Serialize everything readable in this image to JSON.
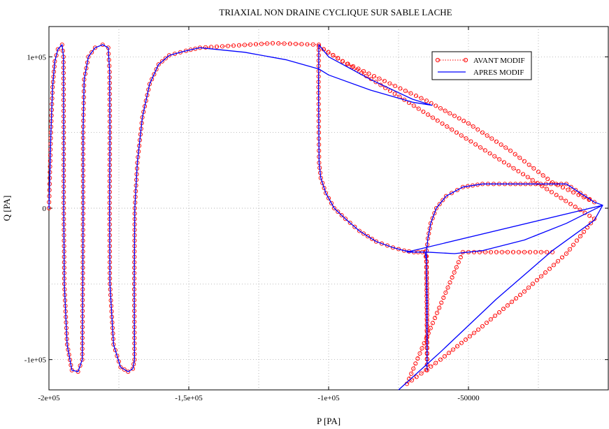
{
  "chart_data": {
    "type": "line",
    "title": "TRIAXIAL NON DRAINE CYCLIQUE SUR SABLE LACHE",
    "xlabel": "P [PA]",
    "ylabel": "Q [PA]",
    "xlim": [
      -200000,
      0
    ],
    "ylim": [
      -120000,
      120000
    ],
    "grid": true,
    "legend_position": "top-right",
    "x_ticks": [
      {
        "value": -200000,
        "label": "-2e+05"
      },
      {
        "value": -150000,
        "label": "-1,5e+05"
      },
      {
        "value": -100000,
        "label": "-1e+05"
      },
      {
        "value": -50000,
        "label": "-50000"
      }
    ],
    "y_ticks": [
      {
        "value": 100000,
        "label": "1e+05"
      },
      {
        "value": 0,
        "label": "0"
      },
      {
        "value": -100000,
        "label": "-1e+05"
      }
    ],
    "series": [
      {
        "name": "AVANT MODIF",
        "color": "#ff0000",
        "style": "dotted-circle-markers",
        "x": [
          -200000,
          -199700,
          -199300,
          -198700,
          -197900,
          -196800,
          -195300,
          -194800,
          -194700,
          -194700,
          -194500,
          -193500,
          -191800,
          -189600,
          -188100,
          -187900,
          -187800,
          -187800,
          -187400,
          -185900,
          -183500,
          -180800,
          -178800,
          -178300,
          -178200,
          -178300,
          -178200,
          -176900,
          -174400,
          -171700,
          -170000,
          -169400,
          -169500,
          -169300,
          -168400,
          -166600,
          -164000,
          -160800,
          -157000,
          -151000,
          -146000,
          -120000,
          -103500,
          -103600,
          -103500,
          -103400,
          -102800,
          -101000,
          -98000,
          -94000,
          -89000,
          -83000,
          -77000,
          -73000,
          -69500,
          -66500,
          -65500,
          -65000,
          -64800,
          -64800,
          -65000,
          -64500,
          -63500,
          -61500,
          -58000,
          -52000,
          -45000,
          -35000,
          -26000,
          -15000,
          -5000,
          -20000,
          -35000,
          -50000,
          -65000,
          -80000,
          -95000,
          -103500,
          -5000,
          -15000,
          -30000,
          -45000,
          -60000,
          -72000,
          -52000,
          -20000
        ],
        "y": [
          0,
          20000,
          50000,
          80000,
          97000,
          105000,
          108000,
          100000,
          50000,
          0,
          -50000,
          -90000,
          -107000,
          -108000,
          -100000,
          -50000,
          0,
          50000,
          85000,
          100000,
          106000,
          108000,
          106000,
          90000,
          50000,
          0,
          -50000,
          -90000,
          -105000,
          -108000,
          -106000,
          -100000,
          -50000,
          0,
          30000,
          60000,
          82000,
          95000,
          101000,
          104000,
          106000,
          109000,
          108000,
          80000,
          50000,
          30000,
          20000,
          10000,
          0,
          -7000,
          -15000,
          -22000,
          -26000,
          -28000,
          -29000,
          -29000,
          -29000,
          -35000,
          -60000,
          -107000,
          -28000,
          -20000,
          -10000,
          0,
          8000,
          14000,
          16000,
          16000,
          16000,
          16000,
          4000,
          17000,
          38000,
          56000,
          71000,
          84000,
          97000,
          107000,
          -7000,
          -30000,
          -55000,
          -78000,
          -100000,
          -116000,
          -29000,
          -29000
        ]
      },
      {
        "name": "APRES MODIF",
        "color": "#0000ff",
        "style": "solid",
        "x": [
          -200000,
          -199700,
          -199300,
          -198700,
          -197900,
          -196800,
          -195300,
          -194800,
          -194700,
          -194700,
          -194500,
          -193500,
          -191800,
          -189600,
          -188100,
          -187900,
          -187800,
          -187800,
          -187400,
          -185900,
          -183500,
          -180800,
          -178800,
          -178300,
          -178200,
          -178300,
          -178200,
          -176900,
          -174400,
          -171700,
          -170000,
          -169400,
          -169500,
          -169300,
          -168400,
          -166600,
          -164000,
          -160800,
          -157000,
          -151000,
          -146000,
          -130000,
          -115000,
          -103500,
          -100000,
          -85000,
          -70000,
          -63000,
          -70000,
          -85000,
          -100000,
          -103500,
          -103600,
          -103500,
          -103400,
          -102800,
          -101000,
          -98000,
          -94000,
          -89000,
          -83000,
          -77000,
          -73000,
          -69500,
          -66500,
          -65500,
          -65000,
          -64800,
          -64800,
          -65000,
          -64500,
          -63500,
          -61500,
          -58000,
          -52000,
          -45000,
          -35000,
          -26000,
          -15000,
          -5000,
          -2000,
          -15000,
          -30000,
          -45000,
          -55000,
          -65000,
          -72000,
          -2000,
          -5000,
          -20000,
          -40000,
          -60000,
          -75000
        ],
        "y": [
          0,
          20000,
          50000,
          80000,
          97000,
          105000,
          108000,
          100000,
          50000,
          0,
          -50000,
          -90000,
          -107000,
          -108000,
          -100000,
          -50000,
          0,
          50000,
          85000,
          100000,
          106000,
          108000,
          106000,
          90000,
          50000,
          0,
          -50000,
          -90000,
          -105000,
          -108000,
          -106000,
          -100000,
          -50000,
          0,
          30000,
          60000,
          82000,
          95000,
          101000,
          104000,
          106000,
          103000,
          98000,
          92000,
          88000,
          78000,
          70000,
          68000,
          72000,
          85000,
          100000,
          108000,
          80000,
          50000,
          30000,
          20000,
          10000,
          0,
          -7000,
          -15000,
          -22000,
          -26000,
          -28000,
          -29000,
          -29000,
          -29000,
          -35000,
          -60000,
          -107000,
          -28000,
          -20000,
          -10000,
          0,
          8000,
          14000,
          16000,
          16000,
          16000,
          16000,
          4000,
          2000,
          -10000,
          -21000,
          -28000,
          -30000,
          -29000,
          -29000,
          2000,
          -8000,
          -28000,
          -60000,
          -95000,
          -120000
        ]
      }
    ]
  }
}
